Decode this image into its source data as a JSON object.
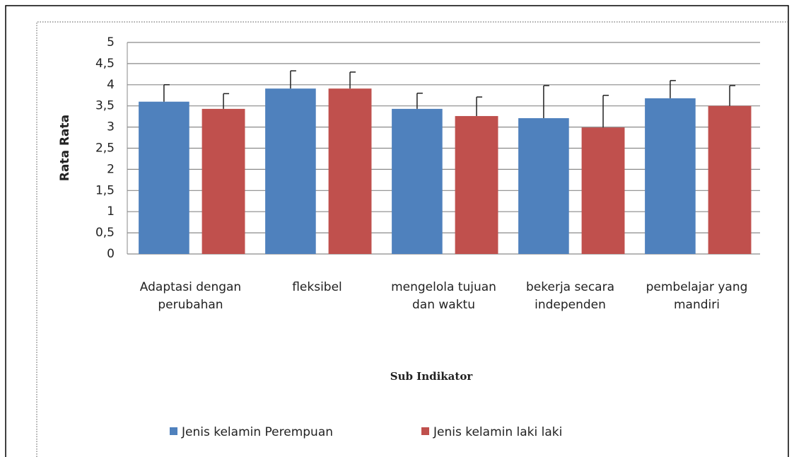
{
  "chart_data": {
    "type": "bar",
    "x_label": "Sub Indikator",
    "y_label": "Rata Rata",
    "categories": [
      "Adaptasi dengan perubahan",
      "fleksibel",
      "mengelola tujuan dan waktu",
      "bekerja secara independen",
      "pembelajar yang mandiri"
    ],
    "series": [
      {
        "name": "Jenis kelamin Perempuan",
        "color": "#4f81bd",
        "values": [
          3.6,
          3.91,
          3.43,
          3.21,
          3.68
        ],
        "errors": [
          0.4,
          0.42,
          0.37,
          0.77,
          0.42
        ]
      },
      {
        "name": "Jenis kelamin laki laki",
        "color": "#c0504d",
        "values": [
          3.43,
          3.91,
          3.26,
          2.99,
          3.5
        ],
        "errors": [
          0.36,
          0.39,
          0.45,
          0.76,
          0.48
        ]
      }
    ],
    "ylim": [
      0,
      5
    ],
    "yticks": [
      0,
      {
        "value": 0.5,
        "label": "0,5"
      },
      1,
      {
        "value": 1.5,
        "label": "1,5"
      },
      2,
      {
        "value": 2.5,
        "label": "2,5"
      },
      3,
      {
        "value": 3.5,
        "label": "3,5"
      },
      4,
      {
        "value": 4.5,
        "label": "4,5"
      },
      5
    ],
    "grid": true,
    "legend": "bottom"
  }
}
